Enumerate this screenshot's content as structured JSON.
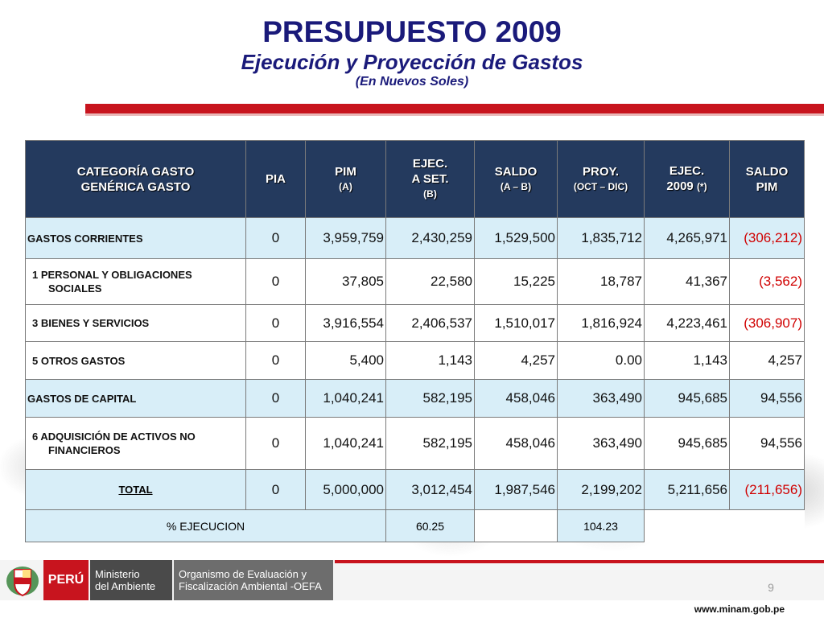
{
  "header": {
    "title": "PRESUPUESTO 2009",
    "subtitle": "Ejecución y Proyección de Gastos",
    "unit_note": "(En Nuevos Soles)"
  },
  "table": {
    "columns": [
      {
        "line1": "CATEGORÍA GASTO",
        "line2": "GENÉRICA GASTO",
        "line3": ""
      },
      {
        "line1": "PIA",
        "line2": "",
        "line3": ""
      },
      {
        "line1": "PIM",
        "line2": "(A)",
        "line3": ""
      },
      {
        "line1": "EJEC.",
        "line2": "A SET.",
        "line3": "(B)"
      },
      {
        "line1": "SALDO",
        "line2": "(A – B)",
        "line3": ""
      },
      {
        "line1": "PROY.",
        "line2": "(OCT – DIC)",
        "line3": ""
      },
      {
        "line1": "EJEC.",
        "line2": "2009",
        "line3": "(*)"
      },
      {
        "line1": "SALDO",
        "line2": "PIM",
        "line3": ""
      }
    ],
    "rows": [
      {
        "cat_line1": "GASTOS CORRIENTES",
        "cat_line2": "",
        "pia": "0",
        "pim": "3,959,759",
        "ejec": "2,430,259",
        "saldo": "1,529,500",
        "proy": "1,835,712",
        "ejec2009": "4,265,971",
        "saldo_pim": "(306,212)"
      },
      {
        "cat_line1": "1  PERSONAL Y OBLIGACIONES",
        "cat_line2": "SOCIALES",
        "pia": "0",
        "pim": "37,805",
        "ejec": "22,580",
        "saldo": "15,225",
        "proy": "18,787",
        "ejec2009": "41,367",
        "saldo_pim": "(3,562)"
      },
      {
        "cat_line1": "3  BIENES Y SERVICIOS",
        "cat_line2": "",
        "pia": "0",
        "pim": "3,916,554",
        "ejec": "2,406,537",
        "saldo": "1,510,017",
        "proy": "1,816,924",
        "ejec2009": "4,223,461",
        "saldo_pim": "(306,907)"
      },
      {
        "cat_line1": "5  OTROS GASTOS",
        "cat_line2": "",
        "pia": "0",
        "pim": "5,400",
        "ejec": "1,143",
        "saldo": "4,257",
        "proy": "0.00",
        "ejec2009": "1,143",
        "saldo_pim": "4,257"
      },
      {
        "cat_line1": "GASTOS DE CAPITAL",
        "cat_line2": "",
        "pia": "0",
        "pim": "1,040,241",
        "ejec": "582,195",
        "saldo": "458,046",
        "proy": "363,490",
        "ejec2009": "945,685",
        "saldo_pim": "94,556"
      },
      {
        "cat_line1": "6 ADQUISICIÓN DE ACTIVOS NO",
        "cat_line2": "FINANCIEROS",
        "pia": "0",
        "pim": "1,040,241",
        "ejec": "582,195",
        "saldo": "458,046",
        "proy": "363,490",
        "ejec2009": "945,685",
        "saldo_pim": "94,556"
      },
      {
        "cat_line1": "TOTAL",
        "cat_line2": "",
        "pia": "0",
        "pim": "5,000,000",
        "ejec": "3,012,454",
        "saldo": "1,987,546",
        "proy": "2,199,202",
        "ejec2009": "5,211,656",
        "saldo_pim": "(211,656)"
      }
    ],
    "pct_row": {
      "label": "% EJECUCION",
      "ejec": "60.25",
      "proy": "104.23"
    }
  },
  "footer": {
    "peru": "PERÚ",
    "ministry_line1": "Ministerio",
    "ministry_line2": "del Ambiente",
    "agency_line1": "Organismo de Evaluación y",
    "agency_line2": "Fiscalización Ambiental -OEFA",
    "page_number": "9",
    "url": "www.minam.gob.pe"
  },
  "colors": {
    "title": "#1a1a7a",
    "header_bg": "#243a5e",
    "row_highlight": "#d8eef8",
    "negative": "#d00000",
    "accent_red": "#c8141e"
  }
}
